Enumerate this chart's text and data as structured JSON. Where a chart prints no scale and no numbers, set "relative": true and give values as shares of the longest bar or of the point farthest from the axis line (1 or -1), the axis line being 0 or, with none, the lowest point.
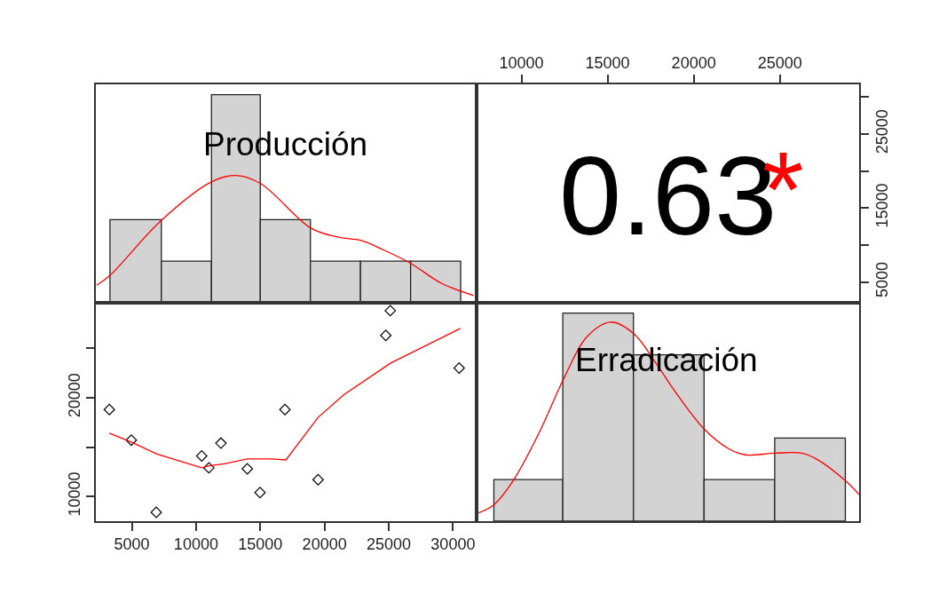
{
  "chart_data": [
    {
      "type": "histogram",
      "title": "Producción",
      "relative": true,
      "xlim": [
        2200,
        31700
      ],
      "tick_labels": false,
      "grid": false,
      "series": [
        {
          "type": "histogram",
          "bins": [
            3300,
            7300,
            11200,
            15000,
            18900,
            22800,
            26700,
            30600
          ],
          "values": [
            0.4,
            0.2,
            1,
            0.4,
            0.2,
            0.2,
            0.2
          ],
          "color": "#d3d3d3"
        },
        {
          "type": "line",
          "x": [
            2260,
            3290,
            7290,
            11160,
            13110,
            15050,
            18930,
            21100,
            22810,
            24520,
            26690,
            29090,
            31600
          ],
          "values": [
            0.084,
            0.131,
            0.396,
            0.58,
            0.612,
            0.572,
            0.359,
            0.315,
            0.3,
            0.256,
            0.19,
            0.094,
            0.035
          ],
          "color": "#ff0000"
        }
      ]
    },
    {
      "type": "scatter",
      "annotations": [
        "0.63",
        "*"
      ],
      "xlim": [
        7500,
        29600
      ],
      "xticks": [
        10000,
        15000,
        20000,
        25000
      ],
      "ylim": [
        2200,
        31700
      ],
      "yticks": [
        5000,
        {
          "value": 10000,
          "label": null
        },
        15000,
        {
          "value": 20000,
          "label": null
        },
        25000,
        {
          "value": 30000,
          "label": null
        }
      ]
    },
    {
      "type": "scatter",
      "marker": "diamond",
      "grid": false,
      "xlim": [
        2200,
        31700
      ],
      "xticks": [
        5000,
        10000,
        15000,
        20000,
        25000,
        30000
      ],
      "ylim": [
        7500,
        29600
      ],
      "yticks": [
        10000,
        {
          "value": 15000,
          "label": null
        },
        20000,
        {
          "value": 25000,
          "label": null
        }
      ],
      "series": [
        {
          "x": [
            3250,
            4960,
            6900,
            10440,
            11000,
            11940,
            13990,
            14980,
            16920,
            19500,
            24770,
            25120,
            30480
          ],
          "values": [
            18800,
            15700,
            8400,
            14100,
            12900,
            15400,
            12800,
            10400,
            18800,
            11700,
            26300,
            28800,
            23000
          ],
          "color": "#000000"
        },
        {
          "type": "line",
          "marker": "none",
          "x": [
            3250,
            4960,
            6950,
            10440,
            11010,
            12190,
            13990,
            15850,
            16990,
            19500,
            21510,
            25150,
            30570
          ],
          "values": [
            16400,
            15500,
            14300,
            12900,
            13100,
            13300,
            13800,
            13800,
            13700,
            18000,
            20300,
            23500,
            27000
          ],
          "color": "#ff0000"
        }
      ]
    },
    {
      "type": "histogram",
      "title": "Erradicación",
      "relative": true,
      "xlim": [
        7500,
        29600
      ],
      "tick_labels": false,
      "grid": false,
      "series": [
        {
          "type": "histogram",
          "bins": [
            8400,
            12400,
            16500,
            20600,
            24700,
            28800
          ],
          "values": [
            0.2,
            1,
            0.8,
            0.2,
            0.4
          ],
          "color": "#d3d3d3"
        },
        {
          "type": "line",
          "x": [
            7500,
            8370,
            9520,
            11060,
            12430,
            13800,
            15170,
            16530,
            17730,
            18930,
            20580,
            22010,
            22980,
            24690,
            26280,
            27140,
            28810,
            29600
          ],
          "values": [
            0.04,
            0.077,
            0.195,
            0.431,
            0.681,
            0.887,
            0.957,
            0.901,
            0.769,
            0.622,
            0.445,
            0.349,
            0.319,
            0.327,
            0.327,
            0.298,
            0.194,
            0.128
          ],
          "color": "#ff0000"
        }
      ]
    }
  ]
}
